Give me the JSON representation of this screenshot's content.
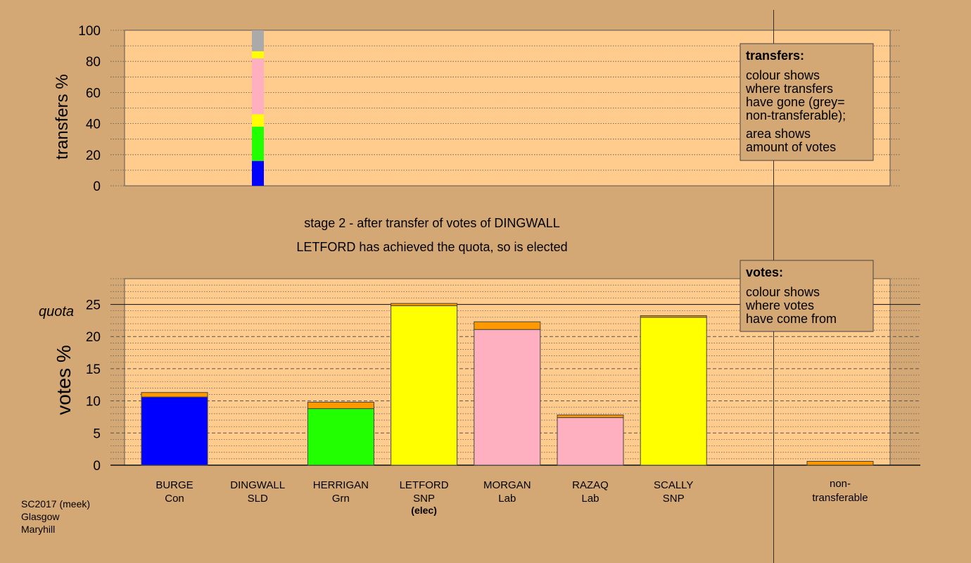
{
  "page": {
    "stage_title": "stage 2 - after transfer of votes of DINGWALL",
    "stage_subtitle": "LETFORD has achieved the quota, so is elected",
    "footer_lines": [
      "SC2017 (meek)",
      "Glasgow",
      "Maryhill"
    ]
  },
  "colors": {
    "page_bg": "#D4A874",
    "plot_bg": "#FFCC8E",
    "party": {
      "Con": "#0000FF",
      "Grn": "#22FF00",
      "SNP": "#FFFF00",
      "Lab": "#FFB0C0",
      "nontransferable": "#AAAAAA",
      "transfer": "#FF9900"
    }
  },
  "chart_data": [
    {
      "type": "bar",
      "name": "transfers",
      "ylabel": "transfers %",
      "ylim": [
        0,
        100
      ],
      "yticks": [
        0,
        20,
        40,
        60,
        80,
        100
      ],
      "stack_order_bottom_to_top": [
        "Con",
        "Grn",
        "SNP",
        "Lab",
        "SNP",
        "nontransferable"
      ],
      "segments": [
        {
          "color_key": "Con",
          "value": 16
        },
        {
          "color_key": "Grn",
          "value": 22
        },
        {
          "color_key": "SNP",
          "value": 8
        },
        {
          "color_key": "Lab",
          "value": 36
        },
        {
          "color_key": "SNP",
          "value": 4.5
        },
        {
          "color_key": "nontransferable",
          "value": 13.5
        }
      ],
      "legend": {
        "title": "transfers:",
        "lines_a": [
          "colour shows",
          "where transfers",
          "have gone (grey=",
          "non-transferable);"
        ],
        "lines_b": [
          "area shows",
          "amount of votes"
        ]
      }
    },
    {
      "type": "bar",
      "name": "votes",
      "ylabel": "votes %",
      "ylim": [
        0,
        29
      ],
      "yticks": [
        0,
        5,
        10,
        15,
        20,
        25
      ],
      "quota": 25,
      "quota_label": "quota",
      "categories": [
        {
          "name": "BURGE",
          "party": "Con",
          "base": 10.6,
          "transfer": 0.7,
          "elected": ""
        },
        {
          "name": "DINGWALL",
          "party": "SLD",
          "base": 0,
          "transfer": 0,
          "elected": ""
        },
        {
          "name": "HERRIGAN",
          "party": "Grn",
          "base": 8.8,
          "transfer": 1.0,
          "elected": ""
        },
        {
          "name": "LETFORD",
          "party": "SNP",
          "base": 24.8,
          "transfer": 0.35,
          "elected": "(elec)"
        },
        {
          "name": "MORGAN",
          "party": "Lab",
          "base": 21.1,
          "transfer": 1.2,
          "elected": ""
        },
        {
          "name": "RAZAQ",
          "party": "Lab",
          "base": 7.4,
          "transfer": 0.4,
          "elected": ""
        },
        {
          "name": "SCALLY",
          "party": "SNP",
          "base": 23.0,
          "transfer": 0.25,
          "elected": ""
        }
      ],
      "nontransferable": {
        "label_lines": [
          "non-",
          "transferable"
        ],
        "value": 0.6
      },
      "legend": {
        "title": "votes:",
        "lines": [
          "colour shows",
          "where votes",
          "have come from"
        ]
      }
    }
  ]
}
